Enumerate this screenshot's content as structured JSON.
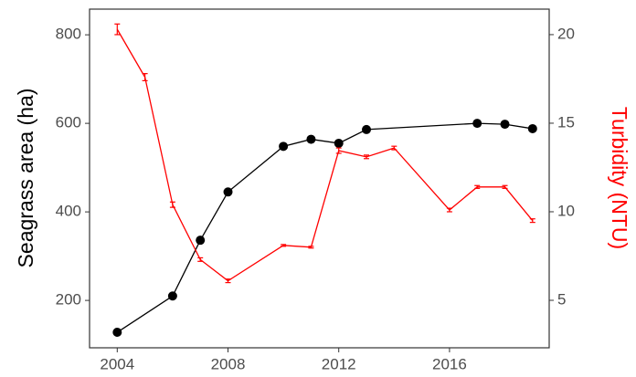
{
  "chart_data": {
    "type": "line",
    "y_label": "Seagrass area (ha)",
    "y2_label": "Turbidity (NTU)",
    "y2_label_color": "#ff0000",
    "xlim": [
      2003,
      2019.6
    ],
    "xticks": [
      2004,
      2008,
      2012,
      2016
    ],
    "ylim": [
      93,
      858
    ],
    "yticks": [
      200,
      400,
      600,
      800
    ],
    "y2lim": [
      2.32,
      21.44
    ],
    "y2ticks": [
      5,
      10,
      15,
      20
    ],
    "grid": false,
    "series": [
      {
        "color": "#000000",
        "axis": "y",
        "markers": true,
        "x": [
          2004,
          2006,
          2007,
          2008,
          2010,
          2011,
          2012,
          2013,
          2017,
          2018,
          2019
        ],
        "values": [
          128,
          210,
          336,
          445,
          548,
          564,
          555,
          586,
          600,
          598,
          588
        ]
      },
      {
        "color": "#ff0000",
        "axis": "y2",
        "markers": false,
        "x": [
          2004,
          2005,
          2006,
          2007,
          2008,
          2010,
          2011,
          2012,
          2013,
          2014,
          2016,
          2017,
          2018,
          2019
        ],
        "values": [
          20.3,
          17.6,
          10.4,
          7.3,
          6.1,
          8.1,
          8.0,
          13.45,
          13.1,
          13.6,
          10.1,
          11.4,
          11.4,
          9.5
        ],
        "errors": [
          0.3,
          0.2,
          0.15,
          0.1,
          0.1,
          0.05,
          0.05,
          0.15,
          0.1,
          0.1,
          0.1,
          0.08,
          0.08,
          0.1
        ]
      }
    ]
  }
}
